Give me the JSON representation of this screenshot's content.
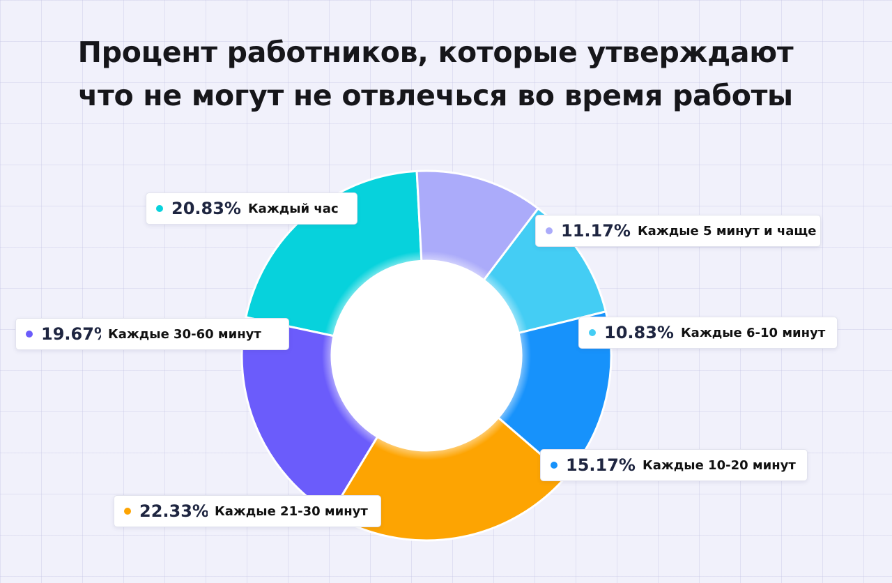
{
  "chart_data": {
    "type": "pie",
    "title": [
      "Процент работников, которые утверждают",
      "что не могут не отвлечься во время работы"
    ],
    "slices": [
      {
        "label": "Каждый час",
        "value": 20.83,
        "value_text": "20.83%",
        "color": "#07d2dc"
      },
      {
        "label": "Каждые 5 минут и чаще",
        "value": 11.17,
        "value_text": "11.17%",
        "color": "#ababfa"
      },
      {
        "label": "Каждые 6-10 минут",
        "value": 10.83,
        "value_text": "10.83%",
        "color": "#44cdf4"
      },
      {
        "label": "Каждые 10-20 минут",
        "value": 15.17,
        "value_text": "15.17%",
        "color": "#1792fb"
      },
      {
        "label": "Каждые 21-30 минут",
        "value": 22.33,
        "value_text": "22.33%",
        "color": "#fda402"
      },
      {
        "label": "Каждые 30-60 минут",
        "value": 19.67,
        "value_text": "19.67%",
        "color": "#6b5cfb"
      }
    ]
  }
}
